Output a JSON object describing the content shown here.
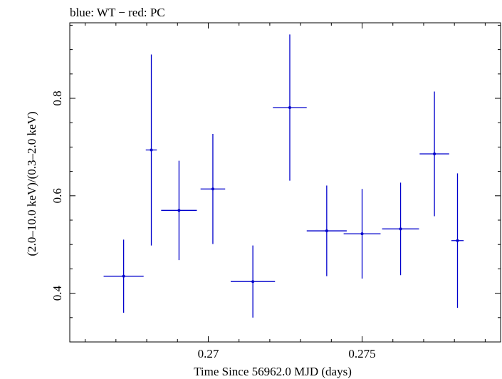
{
  "chart_data": {
    "type": "scatter",
    "title": "blue: WT − red: PC",
    "xlabel": "Time Since 56962.0 MJD (days)",
    "ylabel": "(2.0–10.0 keV)/(0.3–2.0 keV)",
    "xlim": [
      0.2655,
      0.2795
    ],
    "ylim": [
      0.3,
      0.955
    ],
    "x_ticks": [
      0.27,
      0.275
    ],
    "x_tick_labels": [
      "0.27",
      "0.275"
    ],
    "y_ticks": [
      0.4,
      0.6,
      0.8
    ],
    "y_tick_labels": [
      "0.4",
      "0.6",
      "0.8"
    ],
    "grid": false,
    "series": [
      {
        "name": "WT",
        "color": "#0000cc",
        "points": [
          {
            "x": 0.26725,
            "xerr": 0.00065,
            "y": 0.435,
            "ylo": 0.36,
            "yhi": 0.51
          },
          {
            "x": 0.26815,
            "xerr": 0.00018,
            "y": 0.694,
            "ylo": 0.498,
            "yhi": 0.89
          },
          {
            "x": 0.26905,
            "xerr": 0.00058,
            "y": 0.57,
            "ylo": 0.468,
            "yhi": 0.672
          },
          {
            "x": 0.27015,
            "xerr": 0.0004,
            "y": 0.614,
            "ylo": 0.501,
            "yhi": 0.727
          },
          {
            "x": 0.27145,
            "xerr": 0.00072,
            "y": 0.424,
            "ylo": 0.35,
            "yhi": 0.498
          },
          {
            "x": 0.27265,
            "xerr": 0.00055,
            "y": 0.781,
            "ylo": 0.631,
            "yhi": 0.931
          },
          {
            "x": 0.27385,
            "xerr": 0.00065,
            "y": 0.528,
            "ylo": 0.435,
            "yhi": 0.621
          },
          {
            "x": 0.275,
            "xerr": 0.0006,
            "y": 0.522,
            "ylo": 0.43,
            "yhi": 0.614
          },
          {
            "x": 0.27625,
            "xerr": 0.0006,
            "y": 0.532,
            "ylo": 0.437,
            "yhi": 0.627
          },
          {
            "x": 0.27735,
            "xerr": 0.00048,
            "y": 0.686,
            "ylo": 0.558,
            "yhi": 0.814
          },
          {
            "x": 0.2781,
            "xerr": 0.0002,
            "y": 0.508,
            "ylo": 0.37,
            "yhi": 0.646
          }
        ]
      }
    ]
  }
}
